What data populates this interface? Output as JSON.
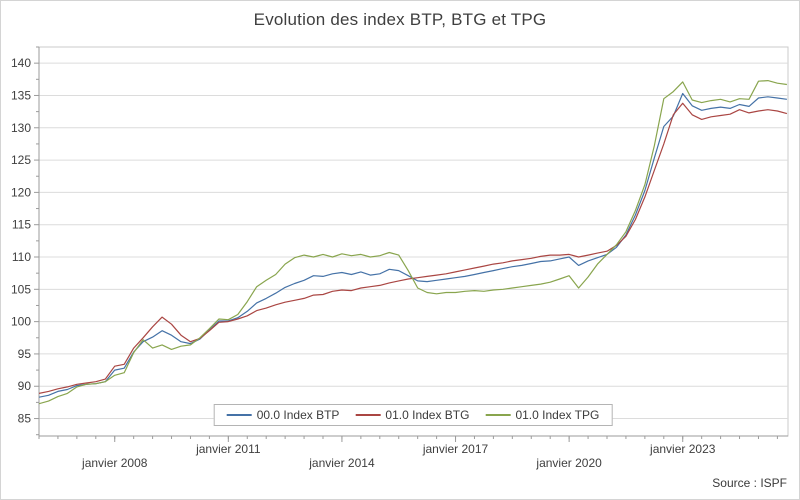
{
  "title": "Evolution des index BTP, BTG et TPG",
  "source": "Source : ISPF",
  "legend": {
    "items": [
      "00.0 Index BTP",
      "01.0 Index BTG",
      "01.0 Index TPG"
    ]
  },
  "colors": {
    "btp": "#4572A7",
    "btg": "#AA4643",
    "tpg": "#89A54E",
    "grid": "#dcdcdc",
    "axis": "#9b9b9b",
    "border": "#cbcbcb",
    "text": "#3f3f3f"
  },
  "chart_data": {
    "type": "line",
    "title": "Evolution des index BTP, BTG et TPG",
    "xlabel": "",
    "ylabel": "",
    "xlim": [
      2006.0,
      2025.78
    ],
    "ylim": [
      82.3,
      142.5
    ],
    "yticks": [
      85,
      90,
      95,
      100,
      105,
      110,
      115,
      120,
      125,
      130,
      135,
      140
    ],
    "ytick_minor_step": 2.5,
    "xtick_minor_step": 0.5,
    "xticks": [
      {
        "label": "janvier 2008",
        "year": 2008,
        "row": 1
      },
      {
        "label": "janvier 2011",
        "year": 2011,
        "row": 0
      },
      {
        "label": "janvier 2014",
        "year": 2014,
        "row": 1
      },
      {
        "label": "janvier 2017",
        "year": 2017,
        "row": 0
      },
      {
        "label": "janvier 2020",
        "year": 2020,
        "row": 1
      },
      {
        "label": "janvier 2023",
        "year": 2023,
        "row": 0
      }
    ],
    "grid": "horizontal-only",
    "legend_position": "bottom-center",
    "x": [
      2006.0,
      2006.25,
      2006.5,
      2006.75,
      2007.0,
      2007.25,
      2007.5,
      2007.75,
      2008.0,
      2008.25,
      2008.5,
      2008.75,
      2009.0,
      2009.25,
      2009.5,
      2009.75,
      2010.0,
      2010.25,
      2010.5,
      2010.75,
      2011.0,
      2011.25,
      2011.5,
      2011.75,
      2012.0,
      2012.25,
      2012.5,
      2012.75,
      2013.0,
      2013.25,
      2013.5,
      2013.75,
      2014.0,
      2014.25,
      2014.5,
      2014.75,
      2015.0,
      2015.25,
      2015.5,
      2015.75,
      2016.0,
      2016.25,
      2016.5,
      2016.75,
      2017.0,
      2017.25,
      2017.5,
      2017.75,
      2018.0,
      2018.25,
      2018.5,
      2018.75,
      2019.0,
      2019.25,
      2019.5,
      2019.75,
      2020.0,
      2020.25,
      2020.5,
      2020.75,
      2021.0,
      2021.25,
      2021.5,
      2021.75,
      2022.0,
      2022.25,
      2022.5,
      2022.75,
      2023.0,
      2023.25,
      2023.5,
      2023.75,
      2024.0,
      2024.25,
      2024.5,
      2024.75,
      2025.0,
      2025.25,
      2025.5,
      2025.75
    ],
    "series": [
      {
        "name": "00.0 Index BTP",
        "color": "#4572A7",
        "values": [
          88.3,
          88.6,
          89.2,
          89.5,
          90.1,
          90.3,
          90.4,
          90.7,
          92.5,
          92.8,
          95.3,
          96.9,
          97.6,
          98.6,
          97.9,
          96.9,
          96.6,
          97.3,
          98.7,
          100.1,
          100.1,
          100.6,
          101.6,
          102.9,
          103.6,
          104.4,
          105.3,
          105.9,
          106.4,
          107.1,
          107.0,
          107.4,
          107.6,
          107.3,
          107.7,
          107.2,
          107.4,
          108.1,
          107.9,
          107.1,
          106.3,
          106.2,
          106.4,
          106.6,
          106.8,
          107.0,
          107.3,
          107.6,
          107.9,
          108.2,
          108.5,
          108.7,
          109.0,
          109.3,
          109.4,
          109.7,
          110.0,
          108.7,
          109.4,
          109.9,
          110.4,
          111.5,
          113.4,
          116.5,
          120.3,
          125.3,
          130.2,
          131.8,
          135.3,
          133.4,
          132.7,
          133.0,
          133.2,
          133.0,
          133.6,
          133.3,
          134.6,
          134.8,
          134.6,
          134.4
        ]
      },
      {
        "name": "01.0 Index BTG",
        "color": "#AA4643",
        "values": [
          88.9,
          89.2,
          89.6,
          89.9,
          90.3,
          90.5,
          90.7,
          91.1,
          93.1,
          93.4,
          95.9,
          97.5,
          99.2,
          100.7,
          99.6,
          97.9,
          96.9,
          97.4,
          98.6,
          99.9,
          100.0,
          100.4,
          100.9,
          101.7,
          102.1,
          102.6,
          103.0,
          103.3,
          103.6,
          104.1,
          104.2,
          104.7,
          104.9,
          104.8,
          105.2,
          105.4,
          105.6,
          106.0,
          106.3,
          106.6,
          106.8,
          107.0,
          107.2,
          107.4,
          107.7,
          108.0,
          108.3,
          108.6,
          108.9,
          109.1,
          109.4,
          109.6,
          109.8,
          110.1,
          110.3,
          110.3,
          110.4,
          110.0,
          110.3,
          110.6,
          110.9,
          111.8,
          113.2,
          115.8,
          119.3,
          123.4,
          127.5,
          132.0,
          133.8,
          132.0,
          131.3,
          131.7,
          131.9,
          132.1,
          132.8,
          132.3,
          132.6,
          132.8,
          132.6,
          132.2
        ]
      },
      {
        "name": "01.0 Index TPG",
        "color": "#89A54E",
        "values": [
          87.3,
          87.7,
          88.4,
          88.9,
          89.9,
          90.3,
          90.4,
          90.7,
          91.7,
          92.1,
          95.2,
          97.2,
          95.9,
          96.4,
          95.7,
          96.2,
          96.4,
          97.5,
          98.9,
          100.4,
          100.3,
          101.1,
          103.1,
          105.4,
          106.4,
          107.3,
          108.9,
          109.9,
          110.3,
          110.0,
          110.4,
          110.0,
          110.5,
          110.2,
          110.4,
          110.0,
          110.2,
          110.7,
          110.3,
          107.9,
          105.2,
          104.5,
          104.3,
          104.5,
          104.5,
          104.7,
          104.8,
          104.7,
          104.9,
          105.0,
          105.2,
          105.4,
          105.6,
          105.8,
          106.1,
          106.6,
          107.1,
          105.2,
          106.9,
          108.9,
          110.4,
          111.9,
          113.9,
          117.2,
          121.2,
          127.2,
          134.5,
          135.6,
          137.1,
          134.3,
          133.9,
          134.2,
          134.4,
          134.0,
          134.5,
          134.4,
          137.2,
          137.3,
          136.9,
          136.7
        ]
      }
    ]
  }
}
